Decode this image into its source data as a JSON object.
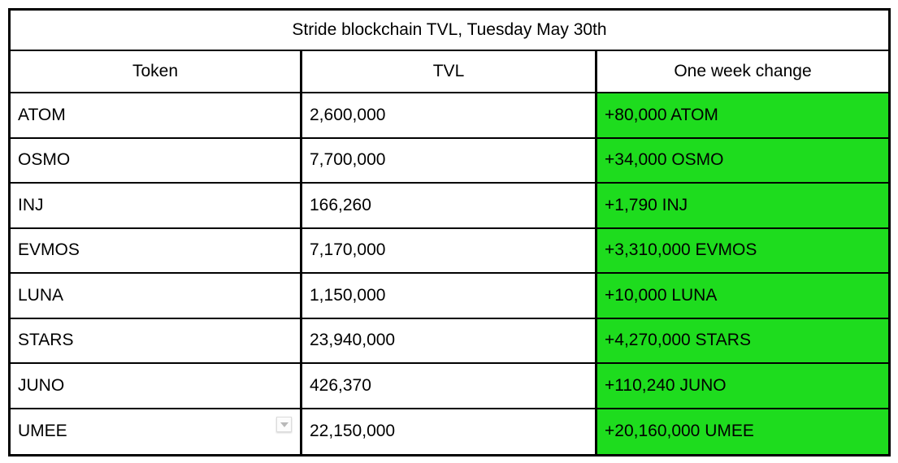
{
  "chart_data": {
    "type": "table",
    "title": "Stride blockchain TVL, Tuesday May 30th",
    "columns": [
      "Token",
      "TVL",
      "One week change"
    ],
    "rows": [
      {
        "token": "ATOM",
        "tvl": "2,600,000",
        "change": "+80,000 ATOM",
        "has_dropdown": false
      },
      {
        "token": "OSMO",
        "tvl": "7,700,000",
        "change": "+34,000 OSMO",
        "has_dropdown": false
      },
      {
        "token": "INJ",
        "tvl": "166,260",
        "change": "+1,790 INJ",
        "has_dropdown": false
      },
      {
        "token": "EVMOS",
        "tvl": "7,170,000",
        "change": "+3,310,000 EVMOS",
        "has_dropdown": false
      },
      {
        "token": "LUNA",
        "tvl": "1,150,000",
        "change": "+10,000 LUNA",
        "has_dropdown": false
      },
      {
        "token": "STARS",
        "tvl": "23,940,000",
        "change": "+4,270,000 STARS",
        "has_dropdown": false
      },
      {
        "token": "JUNO",
        "tvl": "426,370",
        "change": "+110,240 JUNO",
        "has_dropdown": false
      },
      {
        "token": "UMEE",
        "tvl": "22,150,000",
        "change": "+20,160,000 UMEE",
        "has_dropdown": true
      }
    ],
    "numeric": {
      "tvl_values": [
        2600000,
        7700000,
        166260,
        7170000,
        1150000,
        23940000,
        426370,
        22150000
      ],
      "one_week_change_values": [
        80000,
        34000,
        1790,
        3310000,
        10000,
        4270000,
        110240,
        20160000
      ]
    },
    "layout_hints": {
      "all_changes_positive": true,
      "change_column_highlighted": true
    }
  },
  "ui": {
    "colors": {
      "change_cell_background": "#1edc1e",
      "border": "#000000",
      "background": "#ffffff",
      "text": "#000000",
      "dropdown_triangle": "#b8b8b8"
    },
    "icons": {
      "umee_dropdown": "dropdown-arrow-icon"
    }
  }
}
